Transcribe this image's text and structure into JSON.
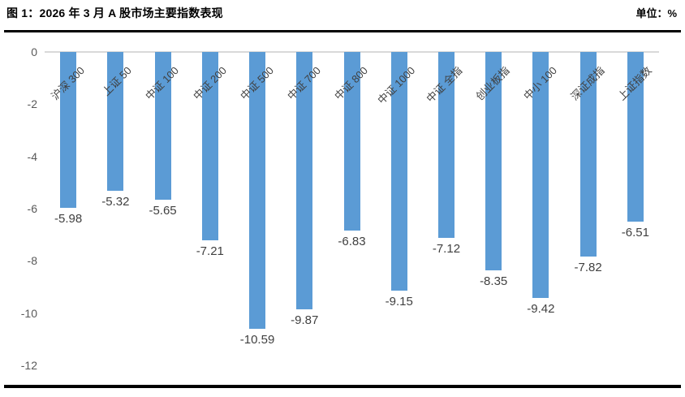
{
  "header": {
    "title": "图 1：2026 年 3 月 A 股市场主要指数表现",
    "unit_label": "单位：%"
  },
  "chart_data": {
    "type": "bar",
    "title": "2026 年 3 月 A 股市场主要指数表现",
    "unit": "%",
    "categories": [
      "沪深 300",
      "上证 50",
      "中证 100",
      "中证 200",
      "中证 500",
      "中证 700",
      "中证 800",
      "中证 1000",
      "中证 全指",
      "创业板指",
      "中小 100",
      "深证成指",
      "上证指数"
    ],
    "values": [
      -5.98,
      -5.32,
      -5.65,
      -7.21,
      -10.59,
      -9.87,
      -6.83,
      -9.15,
      -7.12,
      -8.35,
      -9.42,
      -7.82,
      -6.51
    ],
    "value_labels": [
      "-5.98",
      "-5.32",
      "-5.65",
      "-7.21",
      "-10.59",
      "-9.87",
      "-6.83",
      "-9.15",
      "-7.12",
      "-8.35",
      "-9.42",
      "-7.82",
      "-6.51"
    ],
    "ylim": [
      -12,
      0
    ],
    "ytick_labels": [
      "0",
      "-2",
      "-4",
      "-6",
      "-8",
      "-10",
      "-12"
    ],
    "xlabel": "",
    "ylabel": "",
    "grid": false,
    "legend_position": "none",
    "bar_color": "#5b9bd5",
    "zero_line_color": "#d9d9d9",
    "tick_color": "#595959",
    "label_color": "#404040"
  }
}
